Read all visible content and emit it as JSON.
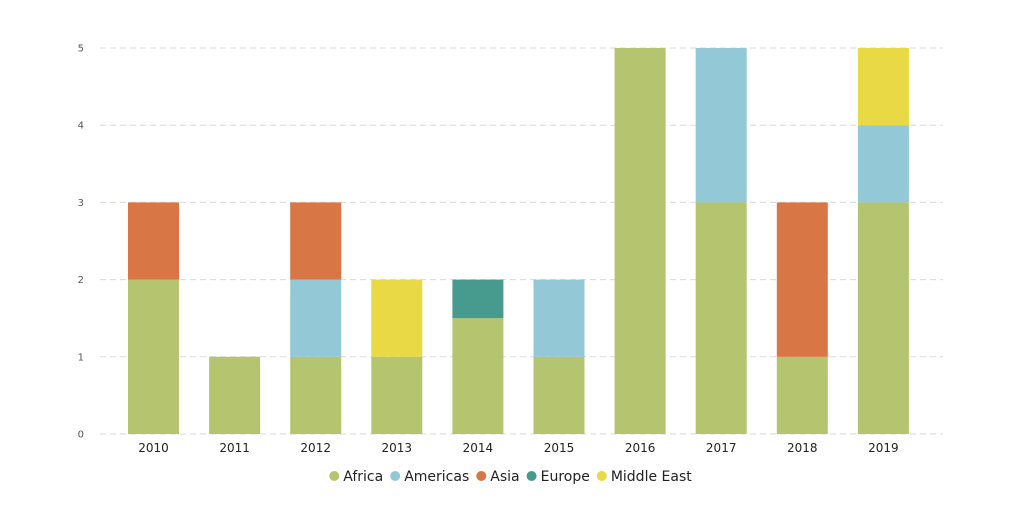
{
  "chart_data": {
    "type": "bar",
    "stacked": true,
    "title": "",
    "xlabel": "",
    "ylabel": "",
    "categories": [
      "2010",
      "2011",
      "2012",
      "2013",
      "2014",
      "2015",
      "2016",
      "2017",
      "2018",
      "2019"
    ],
    "ylim": [
      0,
      5
    ],
    "yticks": [
      "0",
      "1",
      "2",
      "3",
      "4",
      "5"
    ],
    "grid": true,
    "legend_position": "bottom",
    "series": [
      {
        "name": "Africa",
        "color": "#b5c46e",
        "values": [
          2,
          1,
          1,
          1,
          1.5,
          1,
          5,
          3,
          1,
          3
        ]
      },
      {
        "name": "Americas",
        "color": "#93c9d7",
        "values": [
          0,
          0,
          1,
          0,
          0,
          1,
          0,
          2,
          0,
          1
        ]
      },
      {
        "name": "Asia",
        "color": "#d97646",
        "values": [
          1,
          0,
          1,
          0,
          0,
          0,
          0,
          0,
          2,
          0
        ]
      },
      {
        "name": "Europe",
        "color": "#469a8e",
        "values": [
          0,
          0,
          0,
          0,
          0.5,
          0,
          0,
          0,
          0,
          0
        ]
      },
      {
        "name": "Middle East",
        "color": "#e8d945",
        "values": [
          0,
          0,
          0,
          1,
          0,
          0,
          0,
          0,
          0,
          1
        ]
      }
    ]
  }
}
